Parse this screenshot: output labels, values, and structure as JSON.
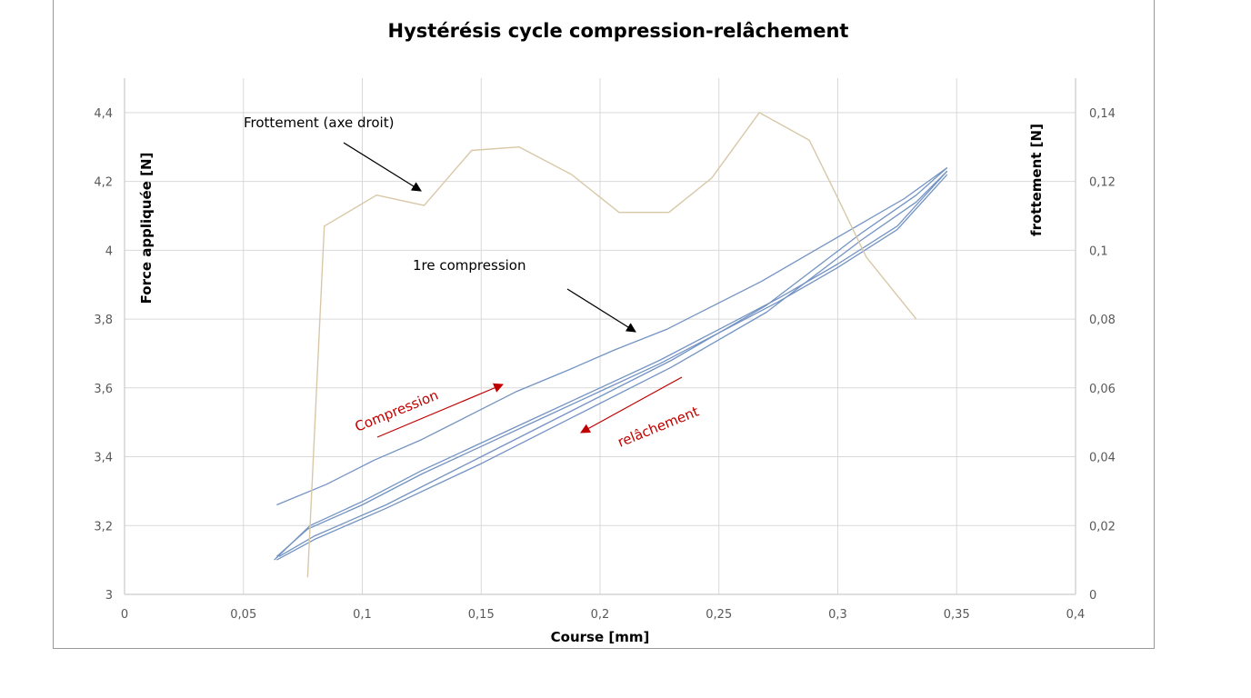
{
  "chart_data": {
    "type": "line",
    "title": "Hystérésis cycle compression-relâchement",
    "xlabel": "Course [mm]",
    "ylabel": "Force appliquée [N]",
    "y2label": "frottement [N]",
    "xlim": [
      0,
      0.4
    ],
    "ylim": [
      3,
      4.5
    ],
    "y2lim": [
      0,
      0.15
    ],
    "x_ticks": [
      "0",
      "0,05",
      "0,1",
      "0,15",
      "0,2",
      "0,25",
      "0,3",
      "0,35",
      "0,4"
    ],
    "y_ticks": [
      "3",
      "3,2",
      "3,4",
      "3,6",
      "3,8",
      "4",
      "4,2",
      "4,4"
    ],
    "y2_ticks": [
      "0",
      "0,02",
      "0,04",
      "0,06",
      "0,08",
      "0,1",
      "0,12",
      "0,14"
    ],
    "grid": true,
    "colors": {
      "force": "#7393c3",
      "friction": "#d8c8a8",
      "grid": "#d9d9d9",
      "annotation_red": "#c00000"
    },
    "series": [
      {
        "axis": "left",
        "x": [
          0.064,
          0.085,
          0.105,
          0.125,
          0.145,
          0.165,
          0.186,
          0.206,
          0.228,
          0.248,
          0.268,
          0.288,
          0.308,
          0.328,
          0.346
        ],
        "values": [
          3.26,
          3.32,
          3.39,
          3.45,
          3.52,
          3.59,
          3.65,
          3.71,
          3.77,
          3.84,
          3.91,
          3.99,
          4.07,
          4.15,
          4.24
        ]
      },
      {
        "axis": "left",
        "x": [
          0.063,
          0.078,
          0.1,
          0.125,
          0.15,
          0.175,
          0.2,
          0.225,
          0.25,
          0.275,
          0.3,
          0.325,
          0.346
        ],
        "values": [
          3.1,
          3.2,
          3.27,
          3.36,
          3.44,
          3.52,
          3.6,
          3.68,
          3.77,
          3.86,
          3.96,
          4.07,
          4.23
        ]
      },
      {
        "axis": "left",
        "x": [
          0.064,
          0.077,
          0.1,
          0.125,
          0.15,
          0.175,
          0.2,
          0.225,
          0.25,
          0.275,
          0.3,
          0.325,
          0.346
        ],
        "values": [
          3.11,
          3.19,
          3.26,
          3.35,
          3.43,
          3.51,
          3.59,
          3.67,
          3.76,
          3.85,
          3.95,
          4.06,
          4.22
        ]
      },
      {
        "axis": "left",
        "x": [
          0.346,
          0.333,
          0.31,
          0.27,
          0.23,
          0.19,
          0.15,
          0.11,
          0.08,
          0.064
        ],
        "values": [
          4.23,
          4.14,
          4.03,
          3.82,
          3.66,
          3.52,
          3.38,
          3.25,
          3.16,
          3.1
        ]
      },
      {
        "axis": "left",
        "x": [
          0.346,
          0.333,
          0.31,
          0.27,
          0.23,
          0.19,
          0.15,
          0.11,
          0.08,
          0.065
        ],
        "values": [
          4.24,
          4.16,
          4.05,
          3.84,
          3.68,
          3.54,
          3.4,
          3.26,
          3.17,
          3.11
        ]
      },
      {
        "axis": "right",
        "x": [
          0.077,
          0.084,
          0.106,
          0.126,
          0.146,
          0.166,
          0.188,
          0.208,
          0.229,
          0.247,
          0.267,
          0.288,
          0.298,
          0.312,
          0.333
        ],
        "values": [
          0.005,
          0.107,
          0.116,
          0.113,
          0.129,
          0.13,
          0.122,
          0.111,
          0.111,
          0.121,
          0.14,
          0.132,
          0.118,
          0.098,
          0.08
        ]
      }
    ],
    "annotations": {
      "friction_label": "Frottement (axe droit)",
      "first_compression": "1re compression",
      "compression": "Compression",
      "release": "relâchement"
    }
  }
}
